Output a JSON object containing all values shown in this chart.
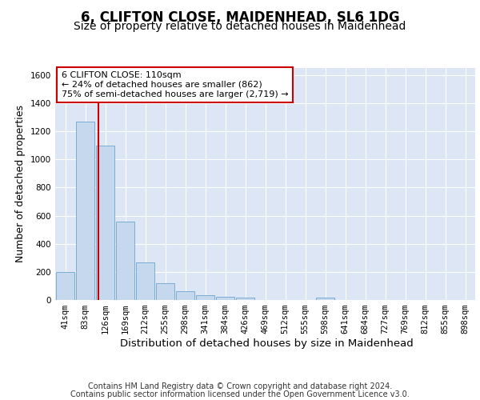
{
  "title1": "6, CLIFTON CLOSE, MAIDENHEAD, SL6 1DG",
  "title2": "Size of property relative to detached houses in Maidenhead",
  "xlabel": "Distribution of detached houses by size in Maidenhead",
  "ylabel": "Number of detached properties",
  "bar_labels": [
    "41sqm",
    "83sqm",
    "126sqm",
    "169sqm",
    "212sqm",
    "255sqm",
    "298sqm",
    "341sqm",
    "384sqm",
    "426sqm",
    "469sqm",
    "512sqm",
    "555sqm",
    "598sqm",
    "641sqm",
    "684sqm",
    "727sqm",
    "769sqm",
    "812sqm",
    "855sqm",
    "898sqm"
  ],
  "bar_heights": [
    200,
    1270,
    1100,
    555,
    265,
    120,
    60,
    33,
    22,
    15,
    0,
    0,
    0,
    15,
    0,
    0,
    0,
    0,
    0,
    0,
    0
  ],
  "bar_color": "#c5d8ee",
  "bar_edge_color": "#7aadd4",
  "vline_x_index": 1.65,
  "vline_color": "#cc0000",
  "annotation_text": "6 CLIFTON CLOSE: 110sqm\n← 24% of detached houses are smaller (862)\n75% of semi-detached houses are larger (2,719) →",
  "annotation_box_color": "#cc0000",
  "ylim": [
    0,
    1650
  ],
  "yticks": [
    0,
    200,
    400,
    600,
    800,
    1000,
    1200,
    1400,
    1600
  ],
  "bg_color": "#dce6f5",
  "grid_color": "#ffffff",
  "footer_line1": "Contains HM Land Registry data © Crown copyright and database right 2024.",
  "footer_line2": "Contains public sector information licensed under the Open Government Licence v3.0.",
  "title1_fontsize": 12,
  "title2_fontsize": 10,
  "xlabel_fontsize": 9.5,
  "ylabel_fontsize": 9,
  "annotation_fontsize": 8,
  "footer_fontsize": 7,
  "tick_fontsize": 7.5
}
